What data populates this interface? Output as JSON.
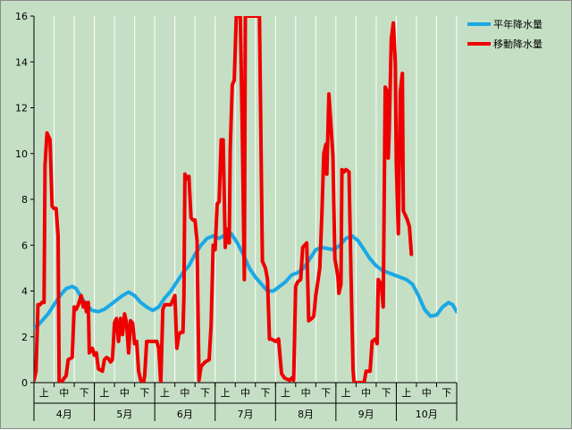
{
  "chart_data": {
    "type": "line",
    "title": "",
    "xlabel": "",
    "ylabel": "",
    "ylim": [
      0,
      16
    ],
    "y_ticks": [
      0,
      2,
      4,
      6,
      8,
      10,
      12,
      14,
      16
    ],
    "grid": "vertical-lines-only",
    "legend_position": "top-right",
    "x_sub_categories": [
      "上",
      "中",
      "下"
    ],
    "x_categories": [
      "4月",
      "5月",
      "6月",
      "7月",
      "8月",
      "9月",
      "10月"
    ],
    "x_domain": [
      0,
      21
    ],
    "colors": {
      "plot_background": "#c5dfc4",
      "normal_line": "#1aa8e6",
      "moving_line": "#ee0000",
      "grid": "#ffffff"
    },
    "series": [
      {
        "name": "平年降水量",
        "color": "#1aa8e6",
        "points": [
          [
            0.0,
            2.4
          ],
          [
            0.2,
            2.5
          ],
          [
            0.4,
            2.7
          ],
          [
            0.7,
            3.0
          ],
          [
            1.0,
            3.4
          ],
          [
            1.3,
            3.8
          ],
          [
            1.6,
            4.1
          ],
          [
            1.9,
            4.2
          ],
          [
            2.1,
            4.1
          ],
          [
            2.3,
            3.8
          ],
          [
            2.6,
            3.4
          ],
          [
            2.9,
            3.15
          ],
          [
            3.2,
            3.1
          ],
          [
            3.5,
            3.2
          ],
          [
            3.8,
            3.4
          ],
          [
            4.1,
            3.6
          ],
          [
            4.4,
            3.8
          ],
          [
            4.7,
            3.95
          ],
          [
            5.0,
            3.8
          ],
          [
            5.3,
            3.5
          ],
          [
            5.6,
            3.3
          ],
          [
            5.9,
            3.15
          ],
          [
            6.2,
            3.3
          ],
          [
            6.5,
            3.7
          ],
          [
            6.8,
            4.0
          ],
          [
            7.1,
            4.4
          ],
          [
            7.4,
            4.8
          ],
          [
            7.7,
            5.1
          ],
          [
            8.0,
            5.6
          ],
          [
            8.3,
            6.0
          ],
          [
            8.6,
            6.3
          ],
          [
            8.9,
            6.4
          ],
          [
            9.2,
            6.3
          ],
          [
            9.5,
            6.45
          ],
          [
            9.8,
            6.5
          ],
          [
            10.1,
            6.1
          ],
          [
            10.4,
            5.6
          ],
          [
            10.7,
            5.0
          ],
          [
            11.0,
            4.6
          ],
          [
            11.3,
            4.3
          ],
          [
            11.6,
            4.0
          ],
          [
            11.9,
            4.0
          ],
          [
            12.2,
            4.2
          ],
          [
            12.5,
            4.4
          ],
          [
            12.8,
            4.7
          ],
          [
            13.1,
            4.8
          ],
          [
            13.4,
            5.0
          ],
          [
            13.7,
            5.4
          ],
          [
            14.0,
            5.8
          ],
          [
            14.3,
            5.9
          ],
          [
            14.6,
            5.85
          ],
          [
            14.9,
            5.8
          ],
          [
            15.2,
            6.0
          ],
          [
            15.5,
            6.3
          ],
          [
            15.8,
            6.4
          ],
          [
            16.1,
            6.2
          ],
          [
            16.4,
            5.8
          ],
          [
            16.7,
            5.4
          ],
          [
            17.0,
            5.1
          ],
          [
            17.3,
            4.9
          ],
          [
            17.6,
            4.8
          ],
          [
            17.9,
            4.7
          ],
          [
            18.2,
            4.6
          ],
          [
            18.5,
            4.5
          ],
          [
            18.8,
            4.3
          ],
          [
            19.1,
            3.8
          ],
          [
            19.4,
            3.2
          ],
          [
            19.7,
            2.9
          ],
          [
            20.0,
            2.95
          ],
          [
            20.3,
            3.3
          ],
          [
            20.6,
            3.5
          ],
          [
            20.8,
            3.4
          ],
          [
            21.0,
            3.1
          ]
        ]
      },
      {
        "name": "移動降水量",
        "color": "#ee0000",
        "points": [
          [
            0.0,
            0.1
          ],
          [
            0.1,
            0.5
          ],
          [
            0.2,
            3.4
          ],
          [
            0.3,
            3.4
          ],
          [
            0.4,
            3.5
          ],
          [
            0.5,
            3.5
          ],
          [
            0.55,
            9.5
          ],
          [
            0.65,
            10.9
          ],
          [
            0.8,
            10.6
          ],
          [
            0.9,
            7.7
          ],
          [
            1.0,
            7.6
          ],
          [
            1.1,
            7.6
          ],
          [
            1.2,
            6.4
          ],
          [
            1.25,
            0.05
          ],
          [
            1.4,
            0.05
          ],
          [
            1.5,
            0.2
          ],
          [
            1.6,
            0.3
          ],
          [
            1.7,
            1.0
          ],
          [
            1.9,
            1.1
          ],
          [
            2.0,
            3.3
          ],
          [
            2.1,
            3.2
          ],
          [
            2.2,
            3.4
          ],
          [
            2.35,
            3.8
          ],
          [
            2.45,
            3.3
          ],
          [
            2.55,
            3.5
          ],
          [
            2.6,
            3.1
          ],
          [
            2.7,
            3.5
          ],
          [
            2.75,
            1.3
          ],
          [
            2.9,
            1.5
          ],
          [
            3.0,
            1.2
          ],
          [
            3.1,
            1.3
          ],
          [
            3.2,
            0.6
          ],
          [
            3.4,
            0.5
          ],
          [
            3.5,
            1.0
          ],
          [
            3.6,
            1.1
          ],
          [
            3.7,
            1.05
          ],
          [
            3.8,
            0.9
          ],
          [
            3.9,
            1.0
          ],
          [
            4.0,
            2.6
          ],
          [
            4.1,
            2.8
          ],
          [
            4.2,
            1.8
          ],
          [
            4.3,
            2.8
          ],
          [
            4.4,
            2.1
          ],
          [
            4.5,
            3.0
          ],
          [
            4.6,
            2.6
          ],
          [
            4.7,
            1.3
          ],
          [
            4.8,
            2.7
          ],
          [
            4.9,
            2.6
          ],
          [
            5.0,
            1.7
          ],
          [
            5.1,
            1.8
          ],
          [
            5.2,
            0.5
          ],
          [
            5.3,
            0.1
          ],
          [
            5.45,
            0.05
          ],
          [
            5.5,
            0.3
          ],
          [
            5.6,
            1.8
          ],
          [
            5.8,
            1.8
          ],
          [
            6.0,
            1.8
          ],
          [
            6.1,
            1.8
          ],
          [
            6.2,
            1.5
          ],
          [
            6.3,
            0.0
          ],
          [
            6.4,
            3.2
          ],
          [
            6.5,
            3.4
          ],
          [
            6.6,
            3.4
          ],
          [
            6.8,
            3.4
          ],
          [
            6.9,
            3.6
          ],
          [
            7.0,
            3.8
          ],
          [
            7.1,
            1.5
          ],
          [
            7.2,
            2.1
          ],
          [
            7.3,
            2.2
          ],
          [
            7.4,
            2.2
          ],
          [
            7.45,
            3.8
          ],
          [
            7.5,
            9.1
          ],
          [
            7.6,
            8.9
          ],
          [
            7.7,
            9.0
          ],
          [
            7.8,
            7.2
          ],
          [
            7.9,
            7.1
          ],
          [
            8.0,
            7.1
          ],
          [
            8.1,
            6.2
          ],
          [
            8.2,
            0.1
          ],
          [
            8.3,
            0.7
          ],
          [
            8.5,
            0.9
          ],
          [
            8.7,
            1.0
          ],
          [
            8.8,
            2.5
          ],
          [
            8.9,
            6.0
          ],
          [
            9.0,
            5.8
          ],
          [
            9.1,
            7.8
          ],
          [
            9.2,
            7.9
          ],
          [
            9.3,
            10.6
          ],
          [
            9.4,
            10.6
          ],
          [
            9.5,
            5.9
          ],
          [
            9.6,
            6.7
          ],
          [
            9.7,
            6.1
          ],
          [
            9.75,
            10.2
          ],
          [
            9.85,
            13.0
          ],
          [
            9.95,
            13.2
          ],
          [
            10.05,
            16.0
          ],
          [
            10.25,
            16.0
          ],
          [
            10.35,
            11.0
          ],
          [
            10.45,
            4.5
          ],
          [
            10.5,
            16.0
          ],
          [
            10.6,
            16.0
          ],
          [
            11.2,
            16.0
          ],
          [
            11.35,
            5.3
          ],
          [
            11.5,
            5.0
          ],
          [
            11.6,
            4.5
          ],
          [
            11.7,
            1.9
          ],
          [
            11.8,
            1.9
          ],
          [
            12.0,
            1.8
          ],
          [
            12.15,
            1.9
          ],
          [
            12.3,
            0.4
          ],
          [
            12.45,
            0.2
          ],
          [
            12.7,
            0.1
          ],
          [
            12.8,
            0.2
          ],
          [
            12.9,
            0.1
          ],
          [
            13.0,
            4.2
          ],
          [
            13.1,
            4.4
          ],
          [
            13.25,
            4.5
          ],
          [
            13.35,
            5.9
          ],
          [
            13.45,
            6.0
          ],
          [
            13.55,
            6.1
          ],
          [
            13.65,
            2.7
          ],
          [
            13.8,
            2.8
          ],
          [
            13.9,
            2.9
          ],
          [
            14.0,
            3.8
          ],
          [
            14.1,
            4.4
          ],
          [
            14.2,
            5.0
          ],
          [
            14.3,
            7.3
          ],
          [
            14.4,
            10.0
          ],
          [
            14.5,
            10.4
          ],
          [
            14.55,
            9.1
          ],
          [
            14.65,
            12.6
          ],
          [
            14.75,
            11.3
          ],
          [
            14.85,
            9.9
          ],
          [
            14.95,
            5.4
          ],
          [
            15.05,
            4.9
          ],
          [
            15.1,
            4.6
          ],
          [
            15.15,
            3.9
          ],
          [
            15.25,
            4.3
          ],
          [
            15.3,
            9.3
          ],
          [
            15.4,
            9.2
          ],
          [
            15.5,
            9.3
          ],
          [
            15.65,
            9.2
          ],
          [
            15.75,
            4.6
          ],
          [
            15.85,
            0.6
          ],
          [
            15.9,
            0.0
          ],
          [
            16.4,
            0.0
          ],
          [
            16.5,
            0.5
          ],
          [
            16.7,
            0.5
          ],
          [
            16.8,
            1.8
          ],
          [
            16.95,
            1.9
          ],
          [
            17.05,
            1.7
          ],
          [
            17.1,
            4.5
          ],
          [
            17.25,
            4.3
          ],
          [
            17.35,
            3.3
          ],
          [
            17.45,
            12.9
          ],
          [
            17.55,
            12.7
          ],
          [
            17.6,
            9.8
          ],
          [
            17.65,
            11.0
          ],
          [
            17.75,
            15.0
          ],
          [
            17.85,
            15.7
          ],
          [
            17.95,
            14.0
          ],
          [
            18.0,
            9.6
          ],
          [
            18.1,
            6.5
          ],
          [
            18.2,
            12.7
          ],
          [
            18.3,
            13.5
          ],
          [
            18.35,
            7.5
          ],
          [
            18.45,
            7.3
          ],
          [
            18.55,
            7.1
          ],
          [
            18.65,
            6.8
          ],
          [
            18.75,
            5.6
          ]
        ]
      }
    ]
  }
}
